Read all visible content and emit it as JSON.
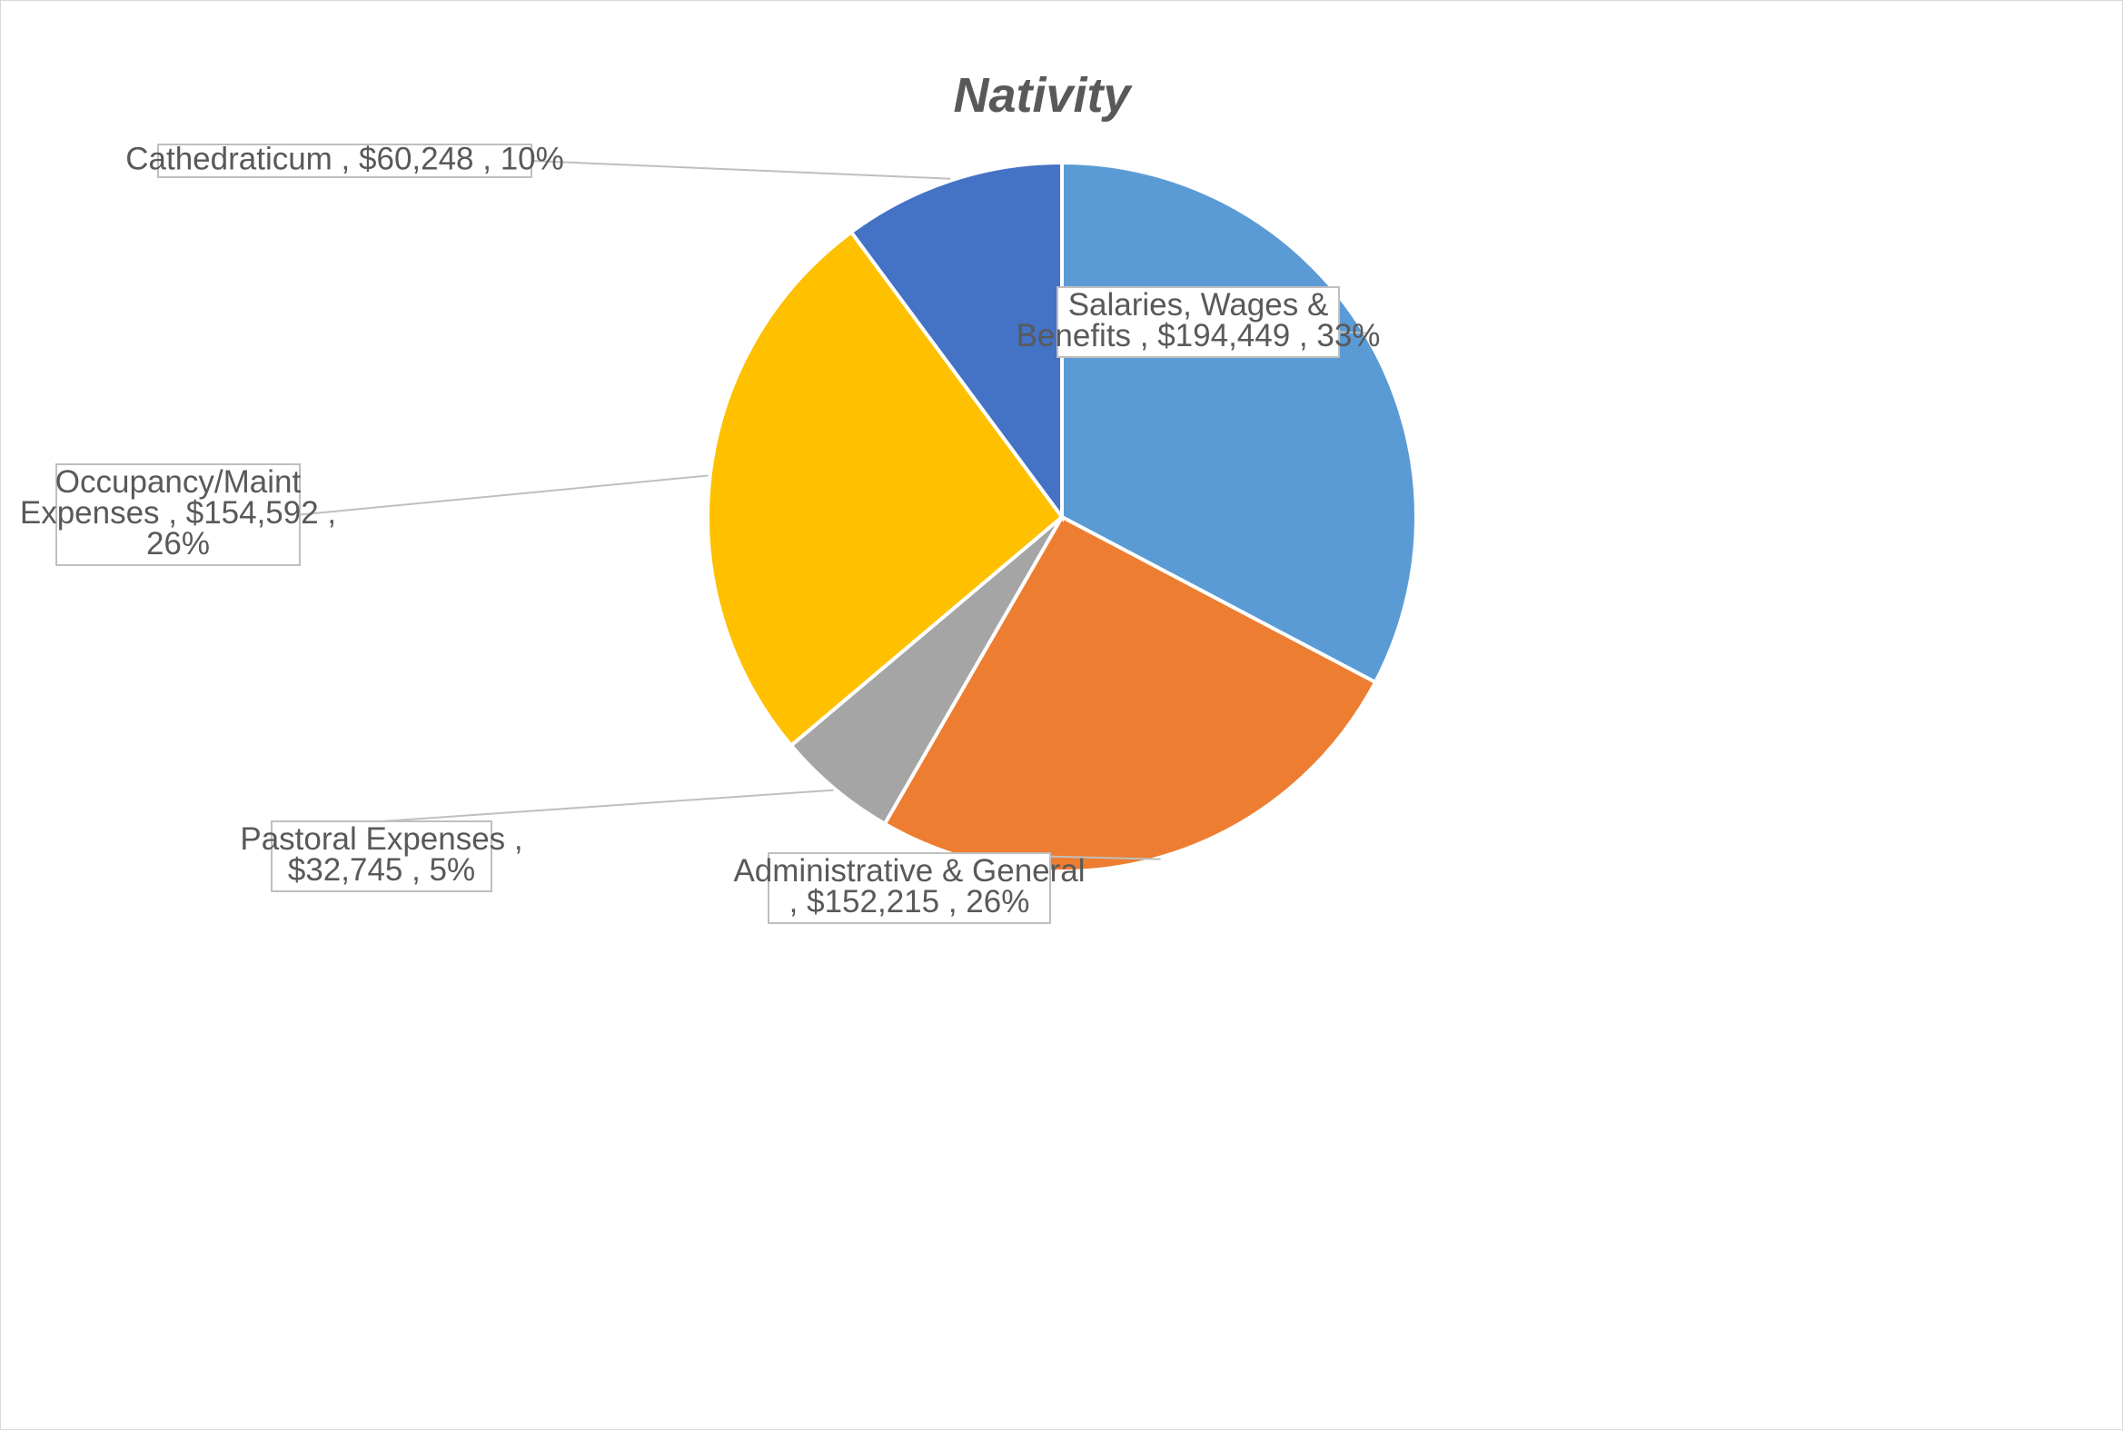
{
  "chart_data": {
    "type": "pie",
    "title": "Nativity",
    "slices": [
      {
        "name": "Salaries, Wages & Benefits",
        "value": 194449,
        "percent": 33,
        "color": "#5b9bd5",
        "label_lines": [
          "Salaries, Wages &",
          "Benefits ,  $194,449 , 33%"
        ]
      },
      {
        "name": "Administrative & General",
        "value": 152215,
        "percent": 26,
        "color": "#ed7d31",
        "label_lines": [
          "Administrative & General",
          ",  $152,215 , 26%"
        ]
      },
      {
        "name": "Pastoral Expenses",
        "value": 32745,
        "percent": 5,
        "color": "#a5a5a5",
        "label_lines": [
          "Pastoral Expenses ,",
          "$32,745 , 5%"
        ]
      },
      {
        "name": "Occupancy/Maint Expenses",
        "value": 154592,
        "percent": 26,
        "color": "#ffc000",
        "label_lines": [
          "Occupancy/Maint",
          "Expenses ,  $154,592 ,",
          "26%"
        ]
      },
      {
        "name": "Cathedraticum",
        "value": 60248,
        "percent": 10,
        "color": "#4472c4",
        "label_lines": [
          "Cathedraticum ,  $60,248 , 10%"
        ]
      }
    ],
    "start_angle_deg": 0,
    "direction": "clockwise",
    "legend": "none",
    "data_labels": "callouts"
  }
}
